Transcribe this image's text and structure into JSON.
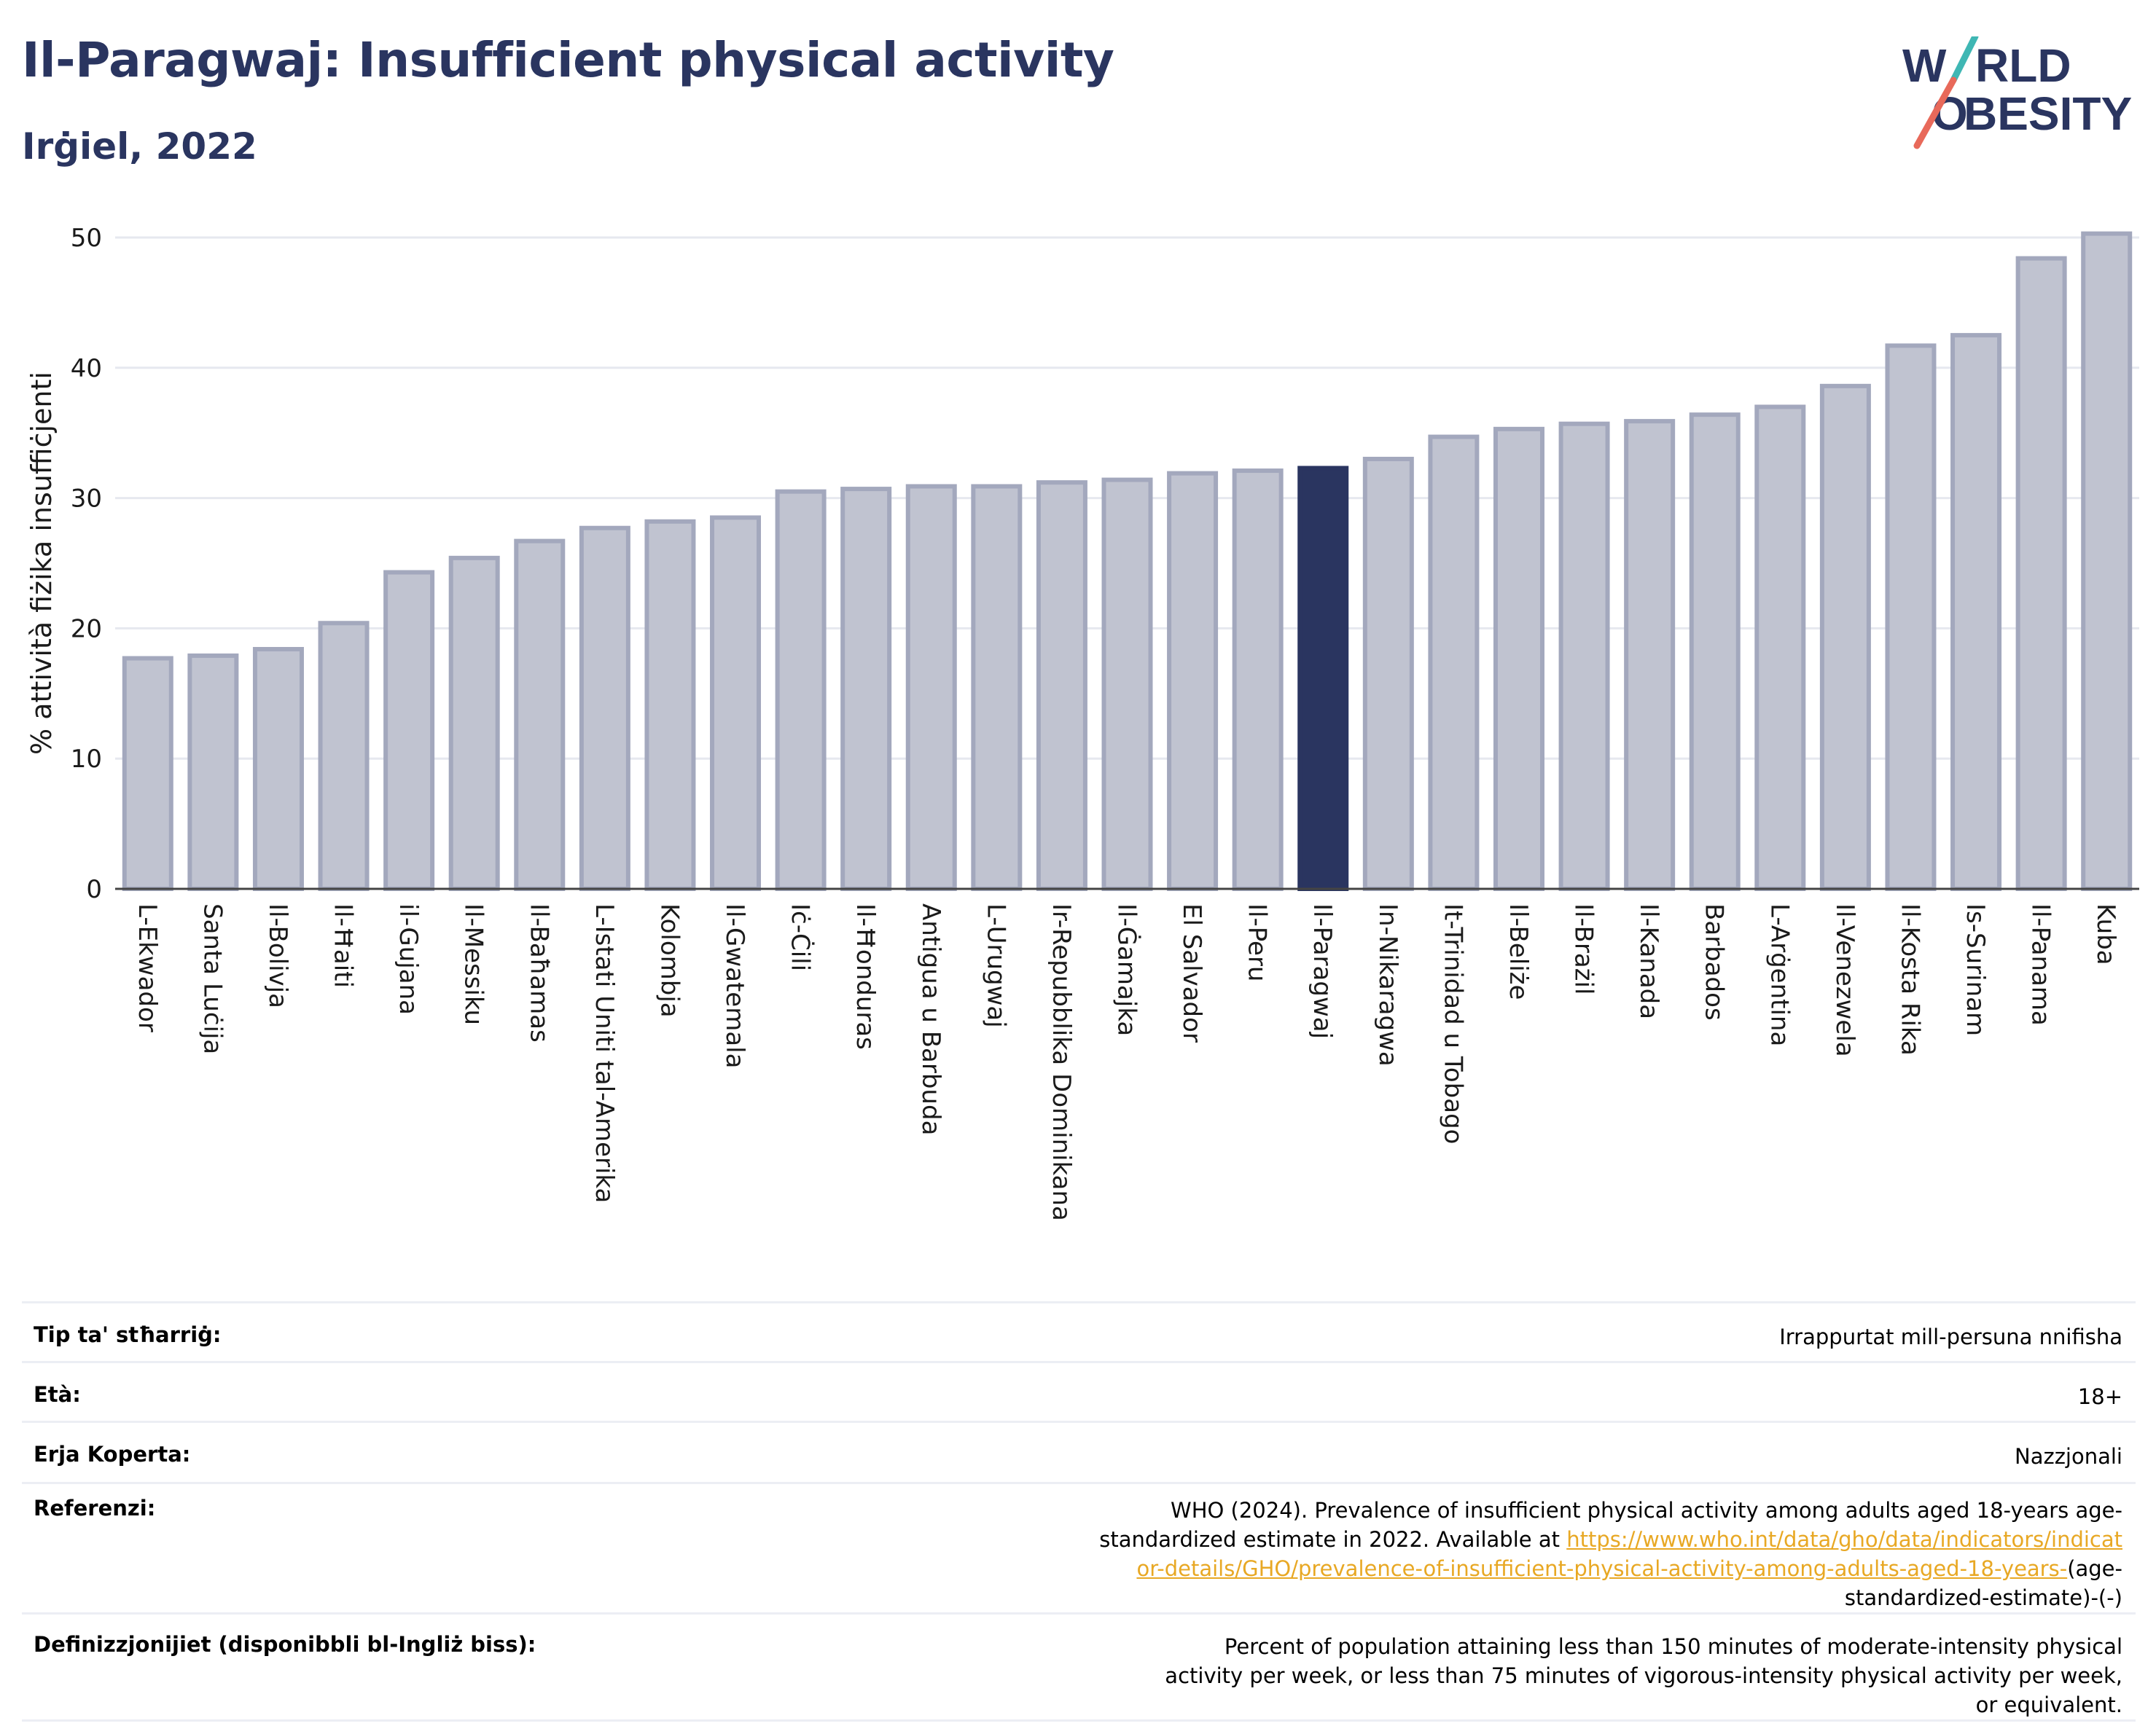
{
  "header": {
    "title": "Il-Paragwaj: Insufficient physical activity",
    "subtitle": "Irġiel, 2022"
  },
  "logo": {
    "line1_text": "W",
    "line1_tail": "RLD",
    "line2_head": "O",
    "line2_text": "BESITY",
    "color_text": "#2a3560",
    "color_slash_top": "#3fb7b4",
    "color_slash_bottom": "#e8695a"
  },
  "colors": {
    "bar_default": "#c0c3d0",
    "bar_stroke": "#a3a8bd",
    "bar_highlight": "#2a3560",
    "axis_text": "#1a1a1a",
    "grid": "#e6e8ef"
  },
  "chart_data": {
    "type": "bar",
    "ylabel": "% attività fiżika insuffiċjenti",
    "ylim": [
      0,
      52
    ],
    "yticks": [
      0,
      10,
      20,
      30,
      40,
      50
    ],
    "grid": true,
    "highlight": "Il-Paragwaj",
    "categories": [
      "L-Ekwador",
      "Santa Luċija",
      "Il-Bolivja",
      "Il-Ħaiti",
      "il-Gujana",
      "Il-Messiku",
      "Il-Baħamas",
      "L-Istati Uniti tal-Amerika",
      "Kolombja",
      "Il-Gwatemala",
      "Iċ-Ċili",
      "Il-Ħonduras",
      "Antigua u Barbuda",
      "L-Urugwaj",
      "Ir-Repubblika Dominikana",
      "Il-Ġamajka",
      "El Salvador",
      "Il-Peru",
      "Il-Paragwaj",
      "In-Nikaragwa",
      "It-Trinidad u Tobago",
      "Il-Beliże",
      "Il-Brażil",
      "Il-Kanada",
      "Barbados",
      "L-Arġentina",
      "Il-Venezwela",
      "Il-Kosta Rika",
      "Is-Surinam",
      "Il-Panama",
      "Kuba"
    ],
    "values": [
      17.7,
      17.9,
      18.4,
      20.4,
      24.3,
      25.4,
      26.7,
      27.7,
      28.2,
      28.5,
      30.5,
      30.7,
      30.9,
      30.9,
      31.2,
      31.4,
      31.9,
      32.1,
      32.3,
      33.0,
      34.7,
      35.3,
      35.7,
      35.9,
      36.4,
      37.0,
      38.6,
      41.7,
      42.5,
      48.4,
      50.3
    ]
  },
  "info_table": {
    "rows": [
      {
        "label": "Tip ta' stħarriġ:",
        "value": "Irrappurtat mill-persuna nnifisha"
      },
      {
        "label": "Età:",
        "value": "18+"
      },
      {
        "label": "Erja Koperta:",
        "value": "Nazzjonali"
      },
      {
        "label": "Referenzi:",
        "value": "WHO (2024). Prevalence of insufficient physical activity among adults aged 18-years age-standardized estimate in 2022. Available at",
        "link": "https://www.who.int/data/gho/data/indicators/indicator-details/GHO/prevalence-of-insufficient-physical-activity-among-adults-aged-18-years-",
        "value_tail": "(age-standardized-estimate)-(-)"
      },
      {
        "label": "Definizzjonijiet (disponibbli bl-Ingliż biss):",
        "value": "Percent of population attaining less than 150 minutes of moderate-intensity physical activity per week, or less than 75 minutes of vigorous-intensity physical activity per week, or equivalent."
      }
    ]
  }
}
